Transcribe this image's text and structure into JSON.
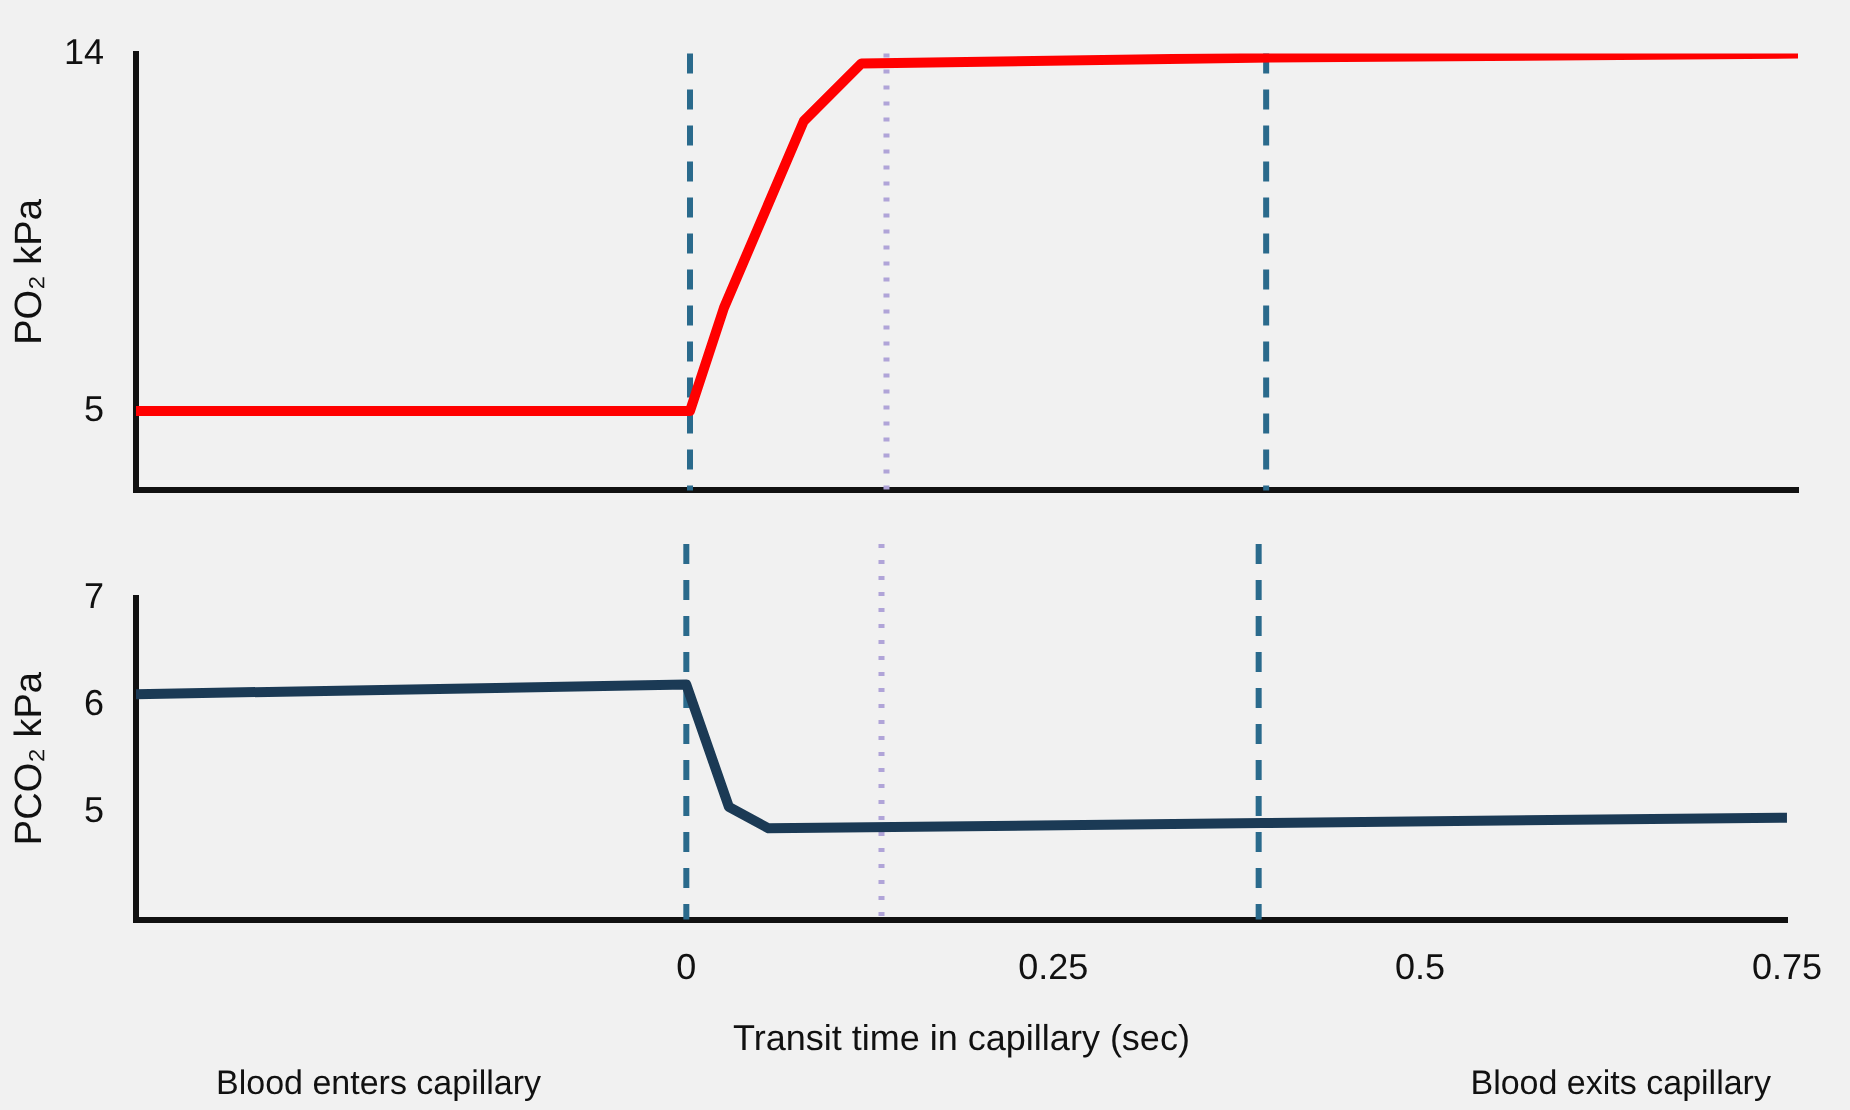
{
  "chart_data": [
    {
      "type": "line",
      "ylabel": "PO₂ kPa",
      "xlim": [
        -0.375,
        0.75
      ],
      "ylim": [
        3,
        14
      ],
      "yticks": [
        5,
        14
      ],
      "tick_labels": "y",
      "grid": false,
      "legend": false,
      "marker": "none",
      "line_style": "solid",
      "series": [
        {
          "color": "#ff0000",
          "x": [
            -0.375,
            0,
            0.023,
            0.077,
            0.116,
            0.393,
            0.75
          ],
          "values": [
            5,
            5,
            7.6,
            12.3,
            13.75,
            13.9,
            14
          ]
        }
      ],
      "ref_lines": [
        {
          "axis": "x",
          "value": 0,
          "color": "#2a6a8c",
          "line_style": "dashed"
        },
        {
          "axis": "x",
          "value": 0.133,
          "color": "#b0a4d8",
          "line_style": "dotted"
        },
        {
          "axis": "x",
          "value": 0.39,
          "color": "#2a6a8c",
          "line_style": "dashed"
        }
      ]
    },
    {
      "type": "line",
      "ylabel": "PCO₂ kPa",
      "xlabel": "Transit time in capillary (sec)",
      "xlim": [
        -0.375,
        0.75
      ],
      "xticks": [
        0,
        0.25,
        0.5,
        0.75
      ],
      "ylim": [
        4,
        7
      ],
      "yticks": [
        5,
        6,
        7
      ],
      "grid": false,
      "legend": false,
      "marker": "none",
      "line_style": "solid",
      "series": [
        {
          "color": "#1b3a55",
          "x": [
            -0.375,
            0,
            0.029,
            0.056,
            0.393,
            0.75
          ],
          "values": [
            6.1,
            6.19,
            5.05,
            4.85,
            4.9,
            4.95
          ]
        }
      ],
      "ref_lines": [
        {
          "axis": "x",
          "value": 0,
          "color": "#2a6a8c",
          "line_style": "dashed"
        },
        {
          "axis": "x",
          "value": 0.133,
          "color": "#b0a4d8",
          "line_style": "dotted"
        },
        {
          "axis": "x",
          "value": 0.39,
          "color": "#2a6a8c",
          "line_style": "dashed"
        }
      ],
      "annotations": [
        "Blood enters capillary",
        "Blood exits capillary"
      ]
    }
  ]
}
